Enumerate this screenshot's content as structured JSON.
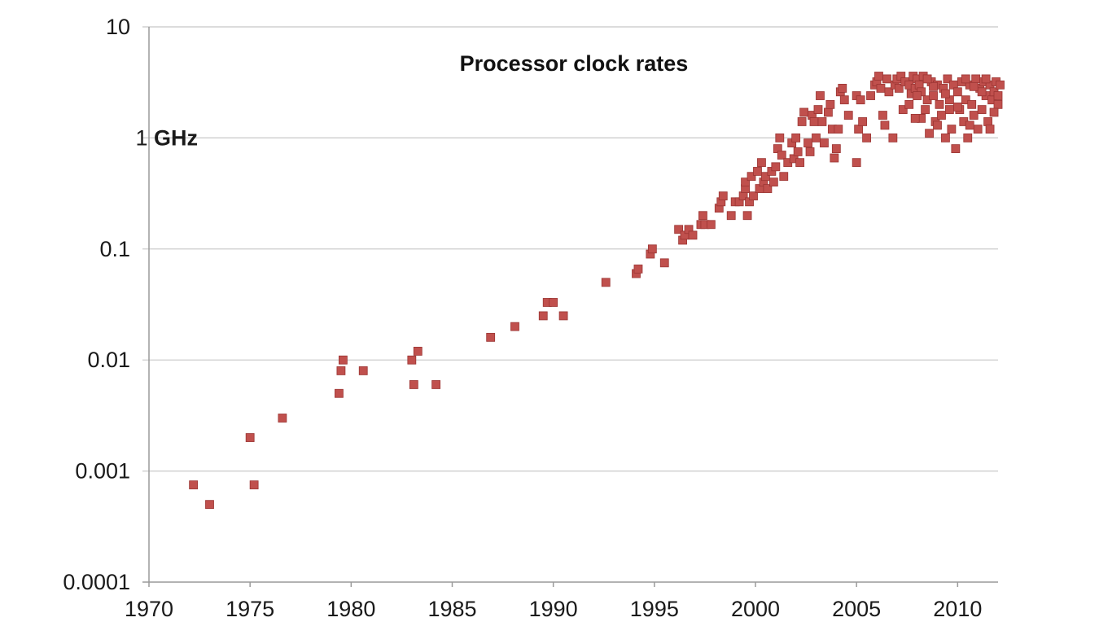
{
  "chart_data": {
    "type": "scatter",
    "title": "Processor clock rates",
    "xlabel": "",
    "ylabel": "",
    "y_scale": "log",
    "xlim": [
      1970,
      2012
    ],
    "ylim": [
      0.0001,
      10
    ],
    "grid": true,
    "x_ticks": [
      {
        "value": 1970,
        "label": "1970"
      },
      {
        "value": 1975,
        "label": "1975"
      },
      {
        "value": 1980,
        "label": "1980"
      },
      {
        "value": 1985,
        "label": "1985"
      },
      {
        "value": 1990,
        "label": "1990"
      },
      {
        "value": 1995,
        "label": "1995"
      },
      {
        "value": 2000,
        "label": "2000"
      },
      {
        "value": 2005,
        "label": "2005"
      },
      {
        "value": 2010,
        "label": "2010"
      }
    ],
    "y_ticks": [
      {
        "value": 10,
        "label": "10"
      },
      {
        "value": 1,
        "label": "1 GHz"
      },
      {
        "value": 0.1,
        "label": "0.1"
      },
      {
        "value": 0.01,
        "label": "0.01"
      },
      {
        "value": 0.001,
        "label": "0.001"
      },
      {
        "value": 0.0001,
        "label": "0.0001"
      }
    ],
    "marker_color": "#c0504d",
    "marker_edge_color": "#9b3533",
    "series": [
      {
        "points": [
          [
            1972.2,
            0.00075
          ],
          [
            1973.0,
            0.0005
          ],
          [
            1975.0,
            0.002
          ],
          [
            1975.2,
            0.00075
          ],
          [
            1976.6,
            0.003
          ],
          [
            1979.4,
            0.005
          ],
          [
            1979.5,
            0.008
          ],
          [
            1979.6,
            0.01
          ],
          [
            1980.6,
            0.008
          ],
          [
            1983.0,
            0.01
          ],
          [
            1983.1,
            0.006
          ],
          [
            1983.3,
            0.012
          ],
          [
            1984.2,
            0.006
          ],
          [
            1986.9,
            0.016
          ],
          [
            1988.1,
            0.02
          ],
          [
            1989.5,
            0.025
          ],
          [
            1989.7,
            0.033
          ],
          [
            1990.0,
            0.033
          ],
          [
            1990.5,
            0.025
          ],
          [
            1992.6,
            0.05
          ],
          [
            1994.1,
            0.06
          ],
          [
            1994.2,
            0.066
          ],
          [
            1994.8,
            0.09
          ],
          [
            1994.9,
            0.1
          ],
          [
            1995.5,
            0.075
          ],
          [
            1996.2,
            0.15
          ],
          [
            1996.4,
            0.12
          ],
          [
            1996.5,
            0.133
          ],
          [
            1996.7,
            0.15
          ],
          [
            1996.9,
            0.133
          ],
          [
            1997.3,
            0.166
          ],
          [
            1997.4,
            0.2
          ],
          [
            1997.5,
            0.166
          ],
          [
            1997.8,
            0.166
          ],
          [
            1998.2,
            0.233
          ],
          [
            1998.3,
            0.266
          ],
          [
            1998.4,
            0.3
          ],
          [
            1998.8,
            0.2
          ],
          [
            1999.0,
            0.266
          ],
          [
            1999.2,
            0.266
          ],
          [
            1999.4,
            0.3
          ],
          [
            1999.5,
            0.35
          ],
          [
            1999.5,
            0.4
          ],
          [
            1999.6,
            0.2
          ],
          [
            1999.7,
            0.266
          ],
          [
            1999.8,
            0.45
          ],
          [
            1999.9,
            0.3
          ],
          [
            2000.1,
            0.5
          ],
          [
            2000.2,
            0.35
          ],
          [
            2000.3,
            0.6
          ],
          [
            2000.4,
            0.4
          ],
          [
            2000.5,
            0.45
          ],
          [
            2000.6,
            0.35
          ],
          [
            2000.8,
            0.5
          ],
          [
            2000.9,
            0.4
          ],
          [
            2001.0,
            0.55
          ],
          [
            2001.1,
            0.8
          ],
          [
            2001.2,
            1.0
          ],
          [
            2001.3,
            0.7
          ],
          [
            2001.4,
            0.45
          ],
          [
            2001.6,
            0.6
          ],
          [
            2001.8,
            0.9
          ],
          [
            2001.9,
            0.65
          ],
          [
            2002.0,
            1.0
          ],
          [
            2002.1,
            0.75
          ],
          [
            2002.2,
            0.6
          ],
          [
            2002.3,
            1.4
          ],
          [
            2002.4,
            1.7
          ],
          [
            2002.6,
            0.9
          ],
          [
            2002.7,
            0.75
          ],
          [
            2002.8,
            1.6
          ],
          [
            2002.9,
            1.4
          ],
          [
            2003.0,
            1.0
          ],
          [
            2003.1,
            1.8
          ],
          [
            2003.2,
            2.4
          ],
          [
            2003.3,
            1.4
          ],
          [
            2003.4,
            0.9
          ],
          [
            2003.6,
            1.7
          ],
          [
            2003.7,
            2.0
          ],
          [
            2003.8,
            1.2
          ],
          [
            2003.9,
            0.66
          ],
          [
            2004.0,
            0.8
          ],
          [
            2004.1,
            1.2
          ],
          [
            2004.2,
            2.6
          ],
          [
            2004.3,
            2.8
          ],
          [
            2004.4,
            2.2
          ],
          [
            2004.6,
            1.6
          ],
          [
            2005.0,
            2.4
          ],
          [
            2005.2,
            2.2
          ],
          [
            2005.0,
            0.6
          ],
          [
            2005.1,
            1.2
          ],
          [
            2005.3,
            1.4
          ],
          [
            2005.5,
            1.0
          ],
          [
            2005.7,
            2.4
          ],
          [
            2005.9,
            3.0
          ],
          [
            2006.0,
            3.2
          ],
          [
            2006.1,
            3.6
          ],
          [
            2006.2,
            2.8
          ],
          [
            2006.3,
            1.6
          ],
          [
            2006.4,
            1.3
          ],
          [
            2006.5,
            3.4
          ],
          [
            2006.6,
            2.6
          ],
          [
            2006.8,
            1.0
          ],
          [
            2006.9,
            3.0
          ],
          [
            2007.0,
            3.4
          ],
          [
            2007.1,
            2.8
          ],
          [
            2007.2,
            3.6
          ],
          [
            2007.3,
            1.8
          ],
          [
            2007.4,
            3.2
          ],
          [
            2007.6,
            3.0
          ],
          [
            2007.7,
            2.5
          ],
          [
            2007.8,
            3.6
          ],
          [
            2007.9,
            2.8
          ],
          [
            2008.0,
            3.4
          ],
          [
            2008.1,
            3.0
          ],
          [
            2008.2,
            2.6
          ],
          [
            2008.3,
            3.6
          ],
          [
            2008.4,
            1.8
          ],
          [
            2008.5,
            2.2
          ],
          [
            2008.6,
            1.1
          ],
          [
            2008.7,
            3.2
          ],
          [
            2008.8,
            2.4
          ],
          [
            2008.9,
            1.4
          ],
          [
            2009.0,
            3.0
          ],
          [
            2009.1,
            2.0
          ],
          [
            2009.2,
            1.6
          ],
          [
            2009.3,
            2.8
          ],
          [
            2009.4,
            1.0
          ],
          [
            2009.5,
            3.4
          ],
          [
            2009.6,
            2.2
          ],
          [
            2009.7,
            1.2
          ],
          [
            2009.8,
            3.0
          ],
          [
            2009.9,
            0.8
          ],
          [
            2010.0,
            2.6
          ],
          [
            2010.1,
            1.8
          ],
          [
            2010.2,
            3.2
          ],
          [
            2010.3,
            1.4
          ],
          [
            2010.4,
            2.2
          ],
          [
            2010.5,
            1.0
          ],
          [
            2010.6,
            3.0
          ],
          [
            2010.7,
            2.0
          ],
          [
            2010.8,
            1.6
          ],
          [
            2010.9,
            3.4
          ],
          [
            2011.0,
            1.2
          ],
          [
            2011.1,
            2.8
          ],
          [
            2011.2,
            1.8
          ],
          [
            2011.3,
            3.2
          ],
          [
            2011.4,
            2.4
          ],
          [
            2011.5,
            1.4
          ],
          [
            2011.6,
            3.0
          ],
          [
            2011.7,
            2.2
          ],
          [
            2011.8,
            2.6
          ],
          [
            2011.9,
            3.2
          ],
          [
            2012.0,
            2.0
          ],
          [
            2012.1,
            3.0
          ],
          [
            2008.2,
            1.5
          ],
          [
            2008.8,
            2.9
          ],
          [
            2009.4,
            2.5
          ],
          [
            2010.0,
            1.9
          ],
          [
            2010.6,
            1.3
          ],
          [
            2011.2,
            2.6
          ],
          [
            2011.8,
            1.7
          ],
          [
            2009.0,
            1.3
          ],
          [
            2010.4,
            3.4
          ],
          [
            2011.6,
            1.2
          ],
          [
            2008.0,
            2.4
          ],
          [
            2009.6,
            1.8
          ],
          [
            2007.6,
            2.0
          ],
          [
            2007.9,
            1.5
          ],
          [
            2008.5,
            3.4
          ],
          [
            2010.8,
            2.9
          ],
          [
            2011.4,
            3.4
          ],
          [
            2012.0,
            2.4
          ]
        ]
      }
    ]
  }
}
